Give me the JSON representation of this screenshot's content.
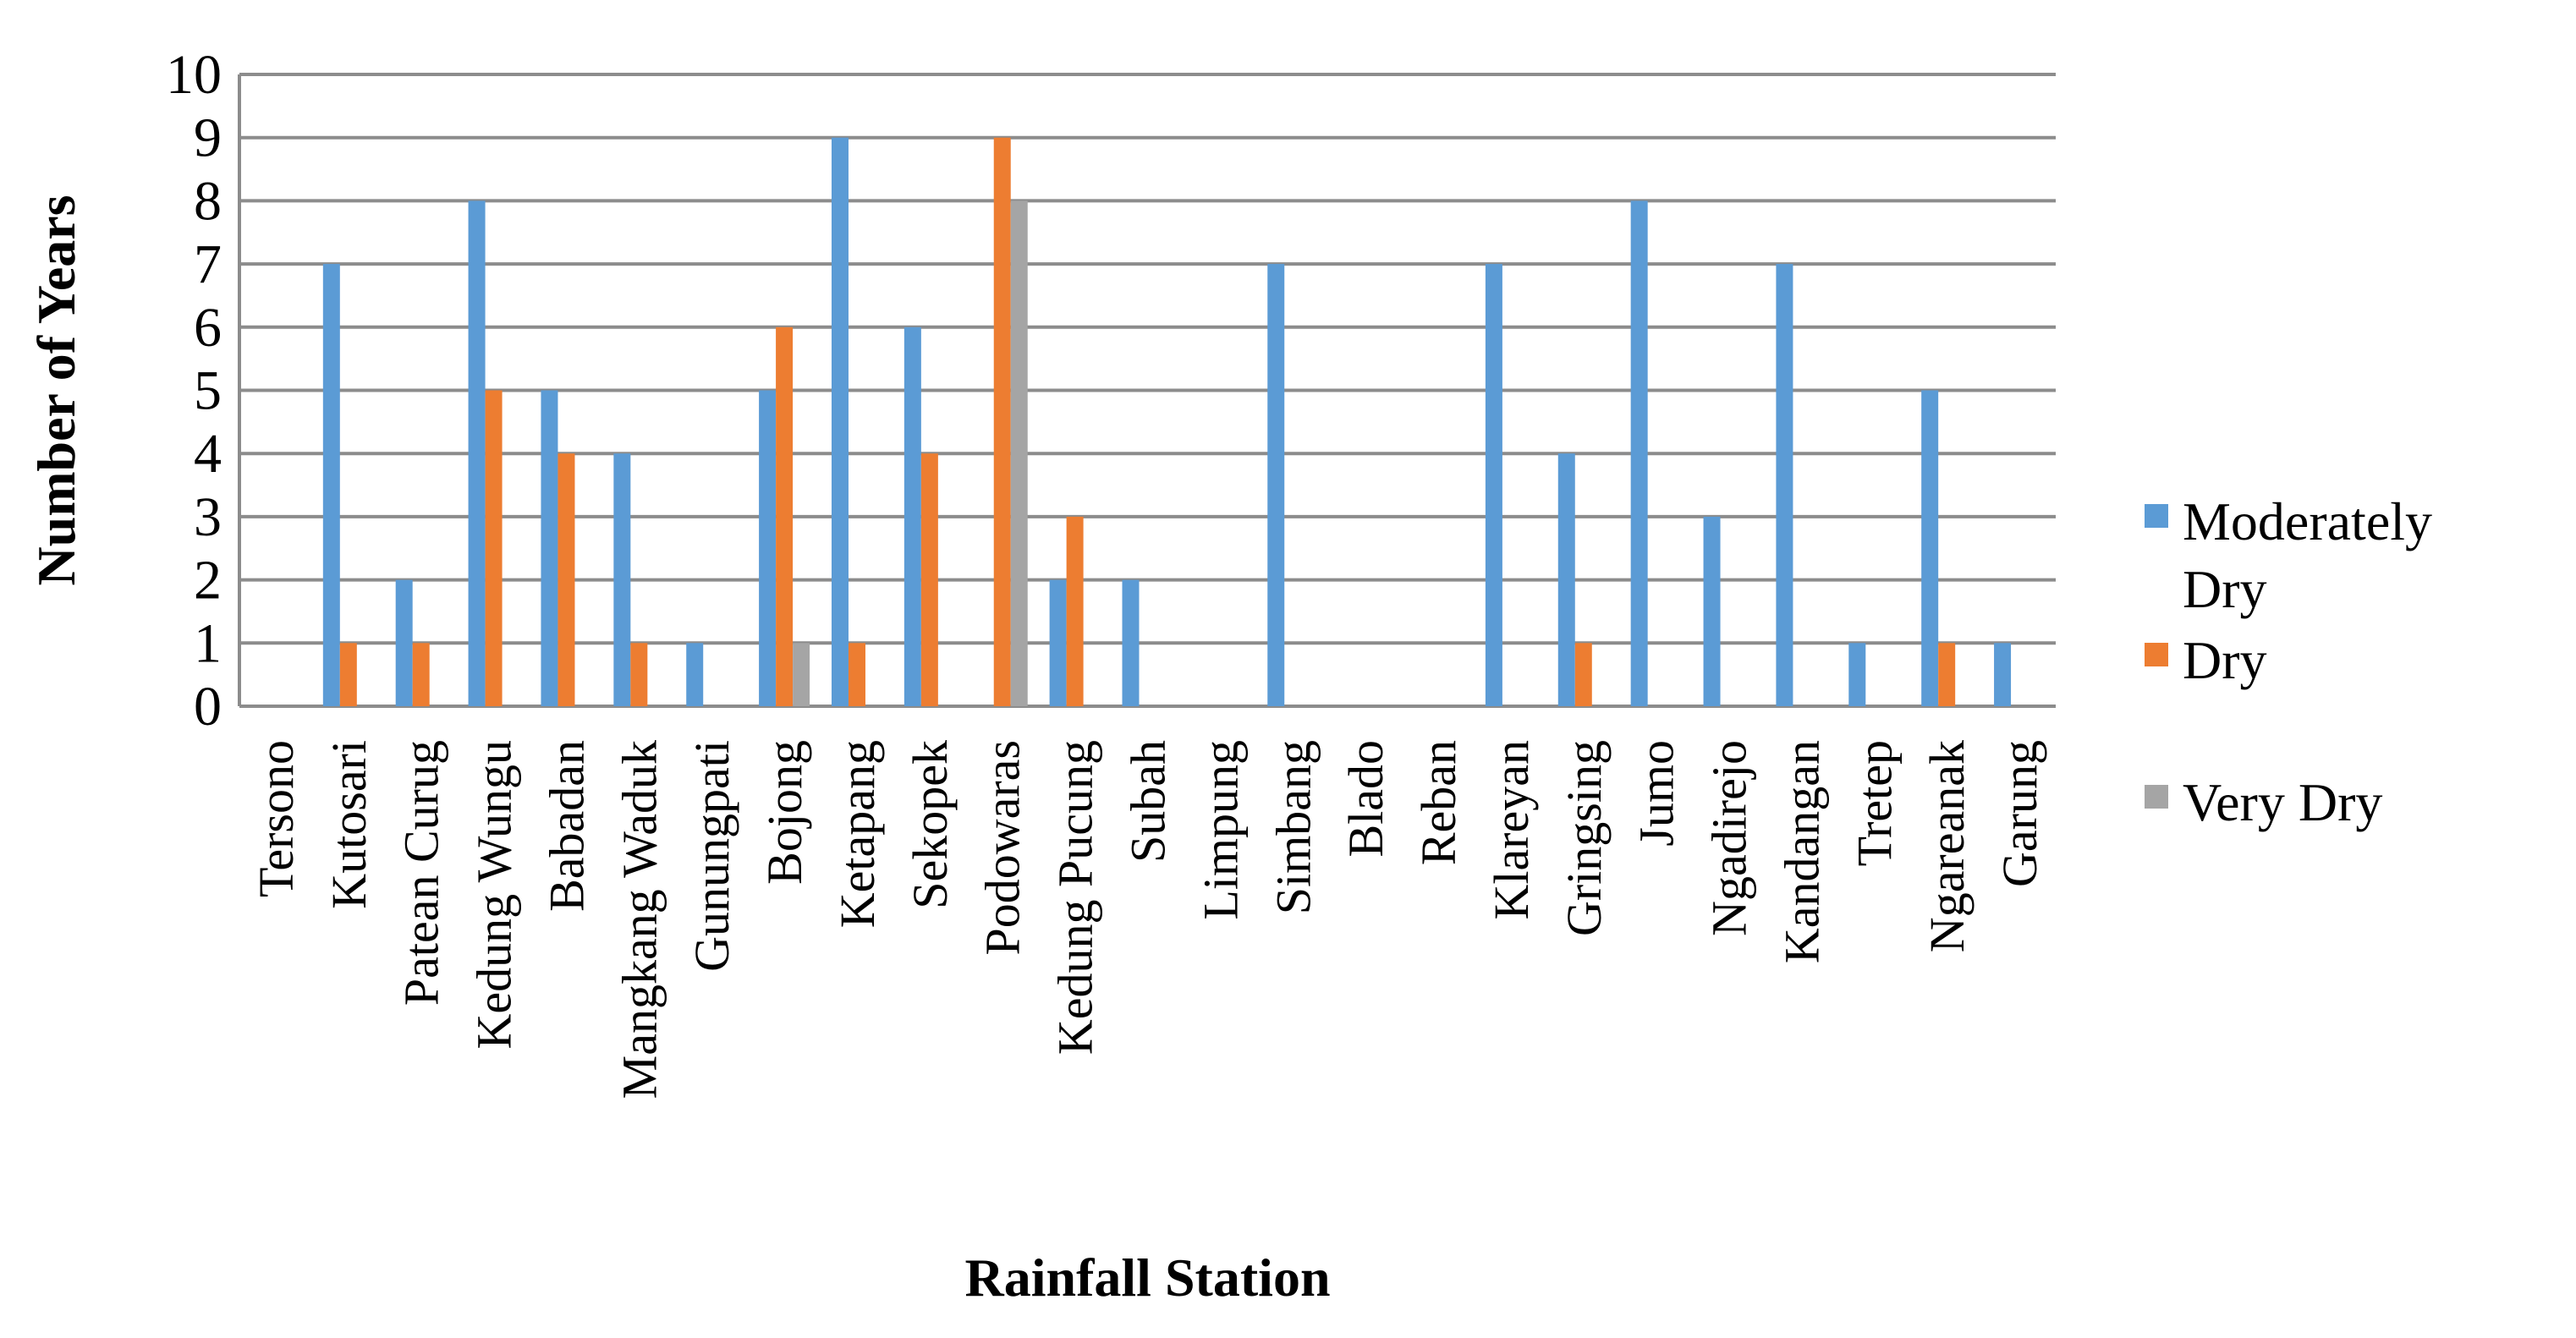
{
  "chart_data": {
    "type": "bar",
    "title": "",
    "xlabel": "Rainfall Station",
    "ylabel": "Number of Years",
    "ylim": [
      0,
      10
    ],
    "yticks": [
      0,
      1,
      2,
      3,
      4,
      5,
      6,
      7,
      8,
      9,
      10
    ],
    "grid": true,
    "legend_position": "right",
    "categories": [
      "Tersono",
      "Kutosari",
      "Patean Curug",
      "Kedung Wungu",
      "Babadan",
      "Mangkang Waduk",
      "Gunungpati",
      "Bojong",
      "Ketapang",
      "Sekopek",
      "Podowaras",
      "Kedung Pucung",
      "Subah",
      "Limpung",
      "Simbang",
      "Blado",
      "Reban",
      "Klareyan",
      "Gringsing",
      "Jumo",
      "Ngadirejo",
      "Kandangan",
      "Tretep",
      "Ngareanak",
      "Garung"
    ],
    "series": [
      {
        "name": "Moderately Dry",
        "color": "#5b9bd5",
        "values": [
          0,
          7,
          2,
          8,
          5,
          4,
          1,
          5,
          9,
          6,
          0,
          2,
          2,
          0,
          7,
          0,
          0,
          7,
          4,
          8,
          3,
          7,
          1,
          5,
          1
        ]
      },
      {
        "name": "Dry",
        "color": "#ed7d31",
        "values": [
          0,
          1,
          1,
          5,
          4,
          1,
          0,
          6,
          1,
          4,
          9,
          3,
          0,
          0,
          0,
          0,
          0,
          0,
          1,
          0,
          0,
          0,
          0,
          1,
          0
        ]
      },
      {
        "name": "Very Dry",
        "color": "#a5a5a5",
        "values": [
          0,
          0,
          0,
          0,
          0,
          0,
          0,
          1,
          0,
          0,
          8,
          0,
          0,
          0,
          0,
          0,
          0,
          0,
          0,
          0,
          0,
          0,
          0,
          0,
          0
        ]
      }
    ],
    "legend": [
      {
        "line1": "Moderately",
        "line2": "Dry"
      },
      {
        "line1": "Dry",
        "line2": ""
      },
      {
        "line1": "Very Dry",
        "line2": ""
      }
    ]
  }
}
